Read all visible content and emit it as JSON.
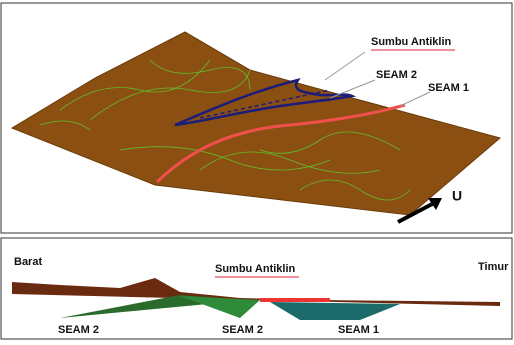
{
  "top_panel": {
    "labels": {
      "axis": "Sumbu Antiklin",
      "seam2": "SEAM 2",
      "seam1": "SEAM 1",
      "north": "U"
    }
  },
  "bottom_panel": {
    "labels": {
      "west": "Barat",
      "axis": "Sumbu Antiklin",
      "east": "Timur",
      "seams": [
        "SEAM 2",
        "SEAM 2",
        "SEAM 1"
      ]
    }
  }
}
